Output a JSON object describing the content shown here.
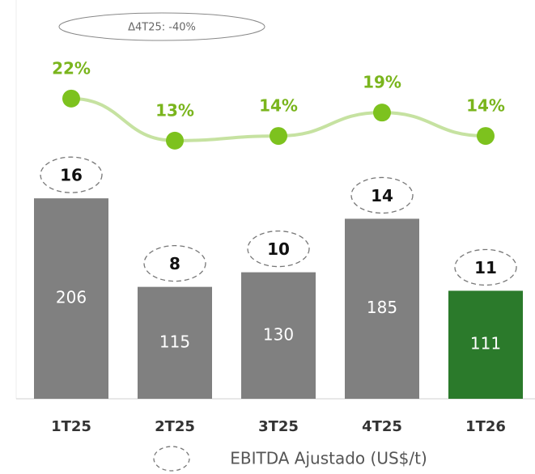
{
  "chart_data": {
    "type": "bar",
    "annotation": "Δ4T25: -40%",
    "categories": [
      "1T25",
      "2T25",
      "3T25",
      "4T25",
      "1T26"
    ],
    "series": [
      {
        "values": [
          206,
          115,
          130,
          185,
          111
        ],
        "colors": [
          "#808080",
          "#808080",
          "#808080",
          "#808080",
          "#2b7a2b"
        ]
      },
      {
        "name": "EBITDA Ajustado (US$/t)",
        "type": "label",
        "values": [
          16,
          8,
          10,
          14,
          11
        ],
        "color": "#777777"
      },
      {
        "type": "line",
        "values": [
          22,
          13,
          14,
          19,
          14
        ],
        "value_labels": [
          "22%",
          "13%",
          "14%",
          "19%",
          "14%"
        ],
        "color": "#c6e2a1",
        "marker_color": "#7dc21e",
        "label_color": "#7ab51d"
      }
    ]
  }
}
